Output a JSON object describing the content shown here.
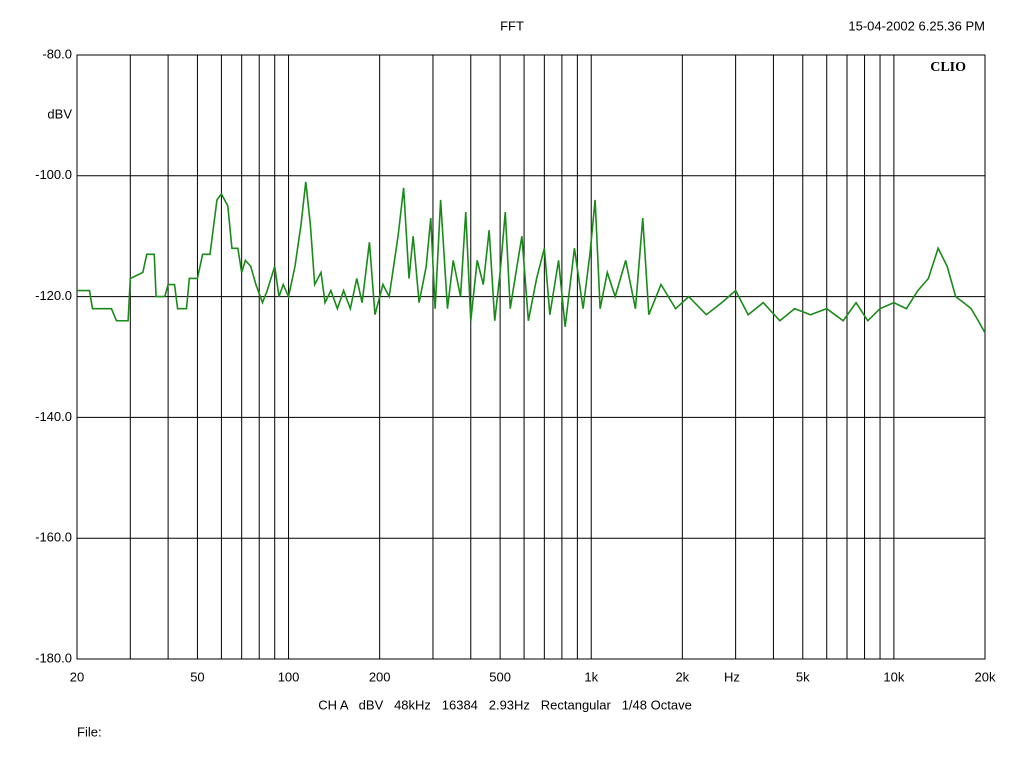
{
  "chart_data": {
    "type": "line",
    "title": "FFT",
    "timestamp": "15-04-2002 6.25.36 PM",
    "watermark": "CLIO",
    "y_label": "dBV",
    "x_label": "Hz",
    "info": "CH A   dBV   48kHz   16384   2.93Hz   Rectangular   1/48 Octave",
    "file_label": "File:",
    "xscale": "log",
    "grid": true,
    "xlim": [
      20,
      20000
    ],
    "ylim": [
      -180,
      -80
    ],
    "xticks": [
      20,
      50,
      100,
      200,
      500,
      {
        "value": 1000,
        "label": "1k"
      },
      {
        "value": 2000,
        "label": "2k"
      },
      {
        "value": 5000,
        "label": "5k"
      },
      {
        "value": 10000,
        "label": "10k"
      },
      {
        "value": 20000,
        "label": "20k"
      }
    ],
    "xminor_ticks": [
      30,
      40,
      60,
      70,
      80,
      90,
      300,
      400,
      600,
      700,
      800,
      900,
      3000,
      4000,
      6000,
      7000,
      8000,
      9000
    ],
    "yticks": [
      {
        "value": -80,
        "label": "-80.0"
      },
      {
        "value": -100,
        "label": "-100.0"
      },
      {
        "value": -120,
        "label": "-120.0"
      },
      {
        "value": -140,
        "label": "-140.0"
      },
      {
        "value": -160,
        "label": "-160.0"
      },
      {
        "value": -180,
        "label": "-180.0"
      }
    ],
    "x": [
      20,
      22,
      22.5,
      26,
      27,
      29.5,
      30,
      33,
      34,
      36,
      36.5,
      39,
      40,
      42,
      43,
      46,
      47,
      50,
      52,
      55,
      58,
      60,
      63,
      65,
      68,
      70,
      72,
      75,
      78,
      82,
      85,
      90,
      93,
      96,
      100,
      105,
      110,
      114,
      118,
      122,
      128,
      132,
      138,
      145,
      152,
      160,
      168,
      175,
      185,
      193,
      205,
      215,
      230,
      240,
      250,
      258,
      270,
      285,
      295,
      305,
      318,
      335,
      350,
      370,
      385,
      400,
      420,
      440,
      460,
      480,
      500,
      520,
      540,
      560,
      590,
      620,
      660,
      700,
      730,
      780,
      820,
      880,
      940,
      990,
      1030,
      1070,
      1130,
      1200,
      1300,
      1400,
      1480,
      1550,
      1700,
      1900,
      2100,
      2400,
      2700,
      3000,
      3300,
      3700,
      4200,
      4700,
      5300,
      6000,
      6800,
      7500,
      8200,
      9000,
      10000,
      11000,
      12000,
      13000,
      14000,
      15000,
      16000,
      17000,
      18000,
      19000,
      20000
    ],
    "series": [
      {
        "name": "CH A",
        "color": "#1a8a1a",
        "values": [
          -119,
          -119,
          -122,
          -122,
          -124,
          -124,
          -117,
          -116,
          -113,
          -113,
          -120,
          -120,
          -118,
          -118,
          -122,
          -122,
          -117,
          -117,
          -113,
          -113,
          -104,
          -103,
          -105,
          -112,
          -112,
          -116,
          -114,
          -115,
          -118,
          -121,
          -119,
          -115,
          -120,
          -118,
          -120,
          -115,
          -108,
          -101,
          -108,
          -118,
          -116,
          -121,
          -119,
          -122,
          -119,
          -122,
          -117,
          -121,
          -111,
          -123,
          -118,
          -120,
          -110,
          -102,
          -117,
          -110,
          -121,
          -115,
          -107,
          -122,
          -104,
          -122,
          -114,
          -120,
          -106,
          -124,
          -114,
          -118,
          -109,
          -124,
          -116,
          -106,
          -122,
          -117,
          -110,
          -124,
          -117,
          -112,
          -123,
          -114,
          -125,
          -112,
          -122,
          -113,
          -104,
          -122,
          -116,
          -120,
          -114,
          -122,
          -107,
          -123,
          -118,
          -122,
          -120,
          -123,
          -121,
          -119,
          -123,
          -121,
          -124,
          -122,
          -123,
          -122,
          -124,
          -121,
          -124,
          -122,
          -121,
          -122,
          -119,
          -117,
          -112,
          -115,
          -120,
          -121,
          -122,
          -124,
          -126
        ]
      }
    ]
  }
}
